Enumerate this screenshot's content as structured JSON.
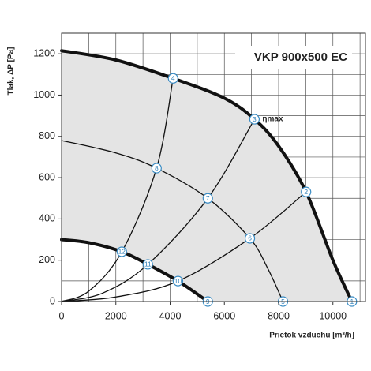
{
  "chart_data": {
    "type": "line",
    "title": "VKP 900x500 EC",
    "x_label": "Prietok vzduchu  [m³/h]",
    "y_label": "Tlak, ΔP [Pa]",
    "xlim": [
      0,
      11200
    ],
    "ylim": [
      0,
      1300
    ],
    "xticks": [
      0,
      2000,
      4000,
      6000,
      8000,
      10000
    ],
    "yticks": [
      0,
      200,
      400,
      600,
      800,
      1000,
      1200
    ],
    "minor_xticks": [
      1000,
      3000,
      5000,
      7000,
      9000,
      11000
    ],
    "minor_yticks": [
      100,
      300,
      500,
      700,
      900,
      1100
    ],
    "grid": true,
    "area_color": "#e4e4e4",
    "series": [
      {
        "color": "#111111",
        "line_width": 4,
        "x": [
          0,
          2000,
          4110,
          6000,
          7110,
          8000,
          9010,
          10000,
          10700
        ],
        "values": [
          1215,
          1170,
          1081,
          985,
          883,
          753,
          531,
          200,
          0
        ]
      },
      {
        "color": "#111111",
        "line_width": 1.3,
        "x": [
          0,
          2000,
          3500,
          5390,
          6940,
          7600,
          8160
        ],
        "values": [
          780,
          720,
          646,
          500,
          306,
          160,
          0
        ]
      },
      {
        "color": "#111111",
        "line_width": 4,
        "x": [
          0,
          1000,
          2220,
          3180,
          4290,
          5390
        ],
        "values": [
          300,
          285,
          241,
          180,
          99,
          0
        ]
      },
      {
        "color": "#111111",
        "line_width": 1.3,
        "x": [
          0,
          1000,
          2220,
          3500,
          4110
        ],
        "values": [
          0,
          50,
          241,
          646,
          1081
        ]
      },
      {
        "color": "#111111",
        "line_width": 1.3,
        "x": [
          0,
          1500,
          3180,
          5390,
          7110
        ],
        "values": [
          0,
          40,
          180,
          500,
          883
        ]
      },
      {
        "color": "#111111",
        "line_width": 1.3,
        "x": [
          0,
          2000,
          4290,
          6940,
          9010
        ],
        "values": [
          0,
          22,
          99,
          306,
          531
        ]
      }
    ],
    "points": [
      {
        "label": "1",
        "x": 10700,
        "y": 0
      },
      {
        "label": "2",
        "x": 9010,
        "y": 531
      },
      {
        "label": "3",
        "x": 7110,
        "y": 883
      },
      {
        "label": "4",
        "x": 4110,
        "y": 1081
      },
      {
        "label": "5",
        "x": 8160,
        "y": 0
      },
      {
        "label": "6",
        "x": 6940,
        "y": 306
      },
      {
        "label": "7",
        "x": 5390,
        "y": 500
      },
      {
        "label": "8",
        "x": 3500,
        "y": 646
      },
      {
        "label": "9",
        "x": 5390,
        "y": 0
      },
      {
        "label": "10",
        "x": 4290,
        "y": 99
      },
      {
        "label": "11",
        "x": 3180,
        "y": 180
      },
      {
        "label": "12",
        "x": 2220,
        "y": 241
      }
    ],
    "point_color": "#3a8cc4",
    "annotation": {
      "text": "ηmax",
      "x": 7110,
      "y": 883
    }
  }
}
